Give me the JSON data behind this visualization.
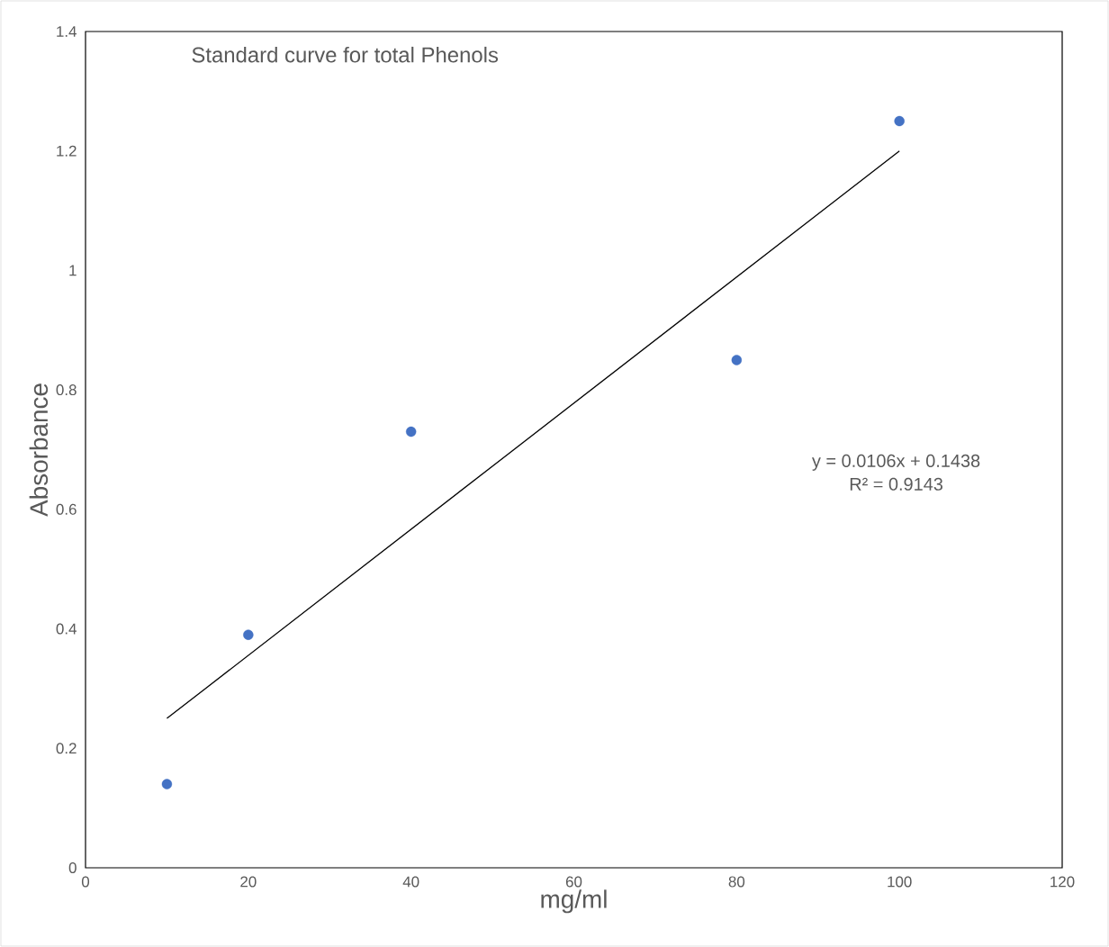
{
  "chart_data": {
    "type": "scatter",
    "title": "Standard curve for total Phenols",
    "xlabel": "mg/ml",
    "ylabel": "Absorbance",
    "annotations": [
      "y = 0.0106x + 0.1438",
      "R² = 0.9143"
    ],
    "series": [
      {
        "color": "#4472c4",
        "x": [
          10,
          20,
          40,
          80,
          100
        ],
        "values": [
          0.14,
          0.39,
          0.73,
          0.85,
          1.25
        ]
      },
      {
        "type": "line",
        "color": "#000000",
        "marker": "none",
        "line_style": "solid",
        "x": [
          10,
          100
        ],
        "values": [
          0.25,
          1.2
        ]
      }
    ],
    "xlim": [
      0,
      120
    ],
    "ylim": [
      0,
      1.4
    ],
    "xticks": [
      0,
      20,
      40,
      60,
      80,
      100,
      120
    ],
    "yticks": [
      0,
      0.2,
      0.4,
      0.6,
      0.8,
      1,
      1.2,
      1.4
    ],
    "grid": false,
    "marker": "circle"
  }
}
